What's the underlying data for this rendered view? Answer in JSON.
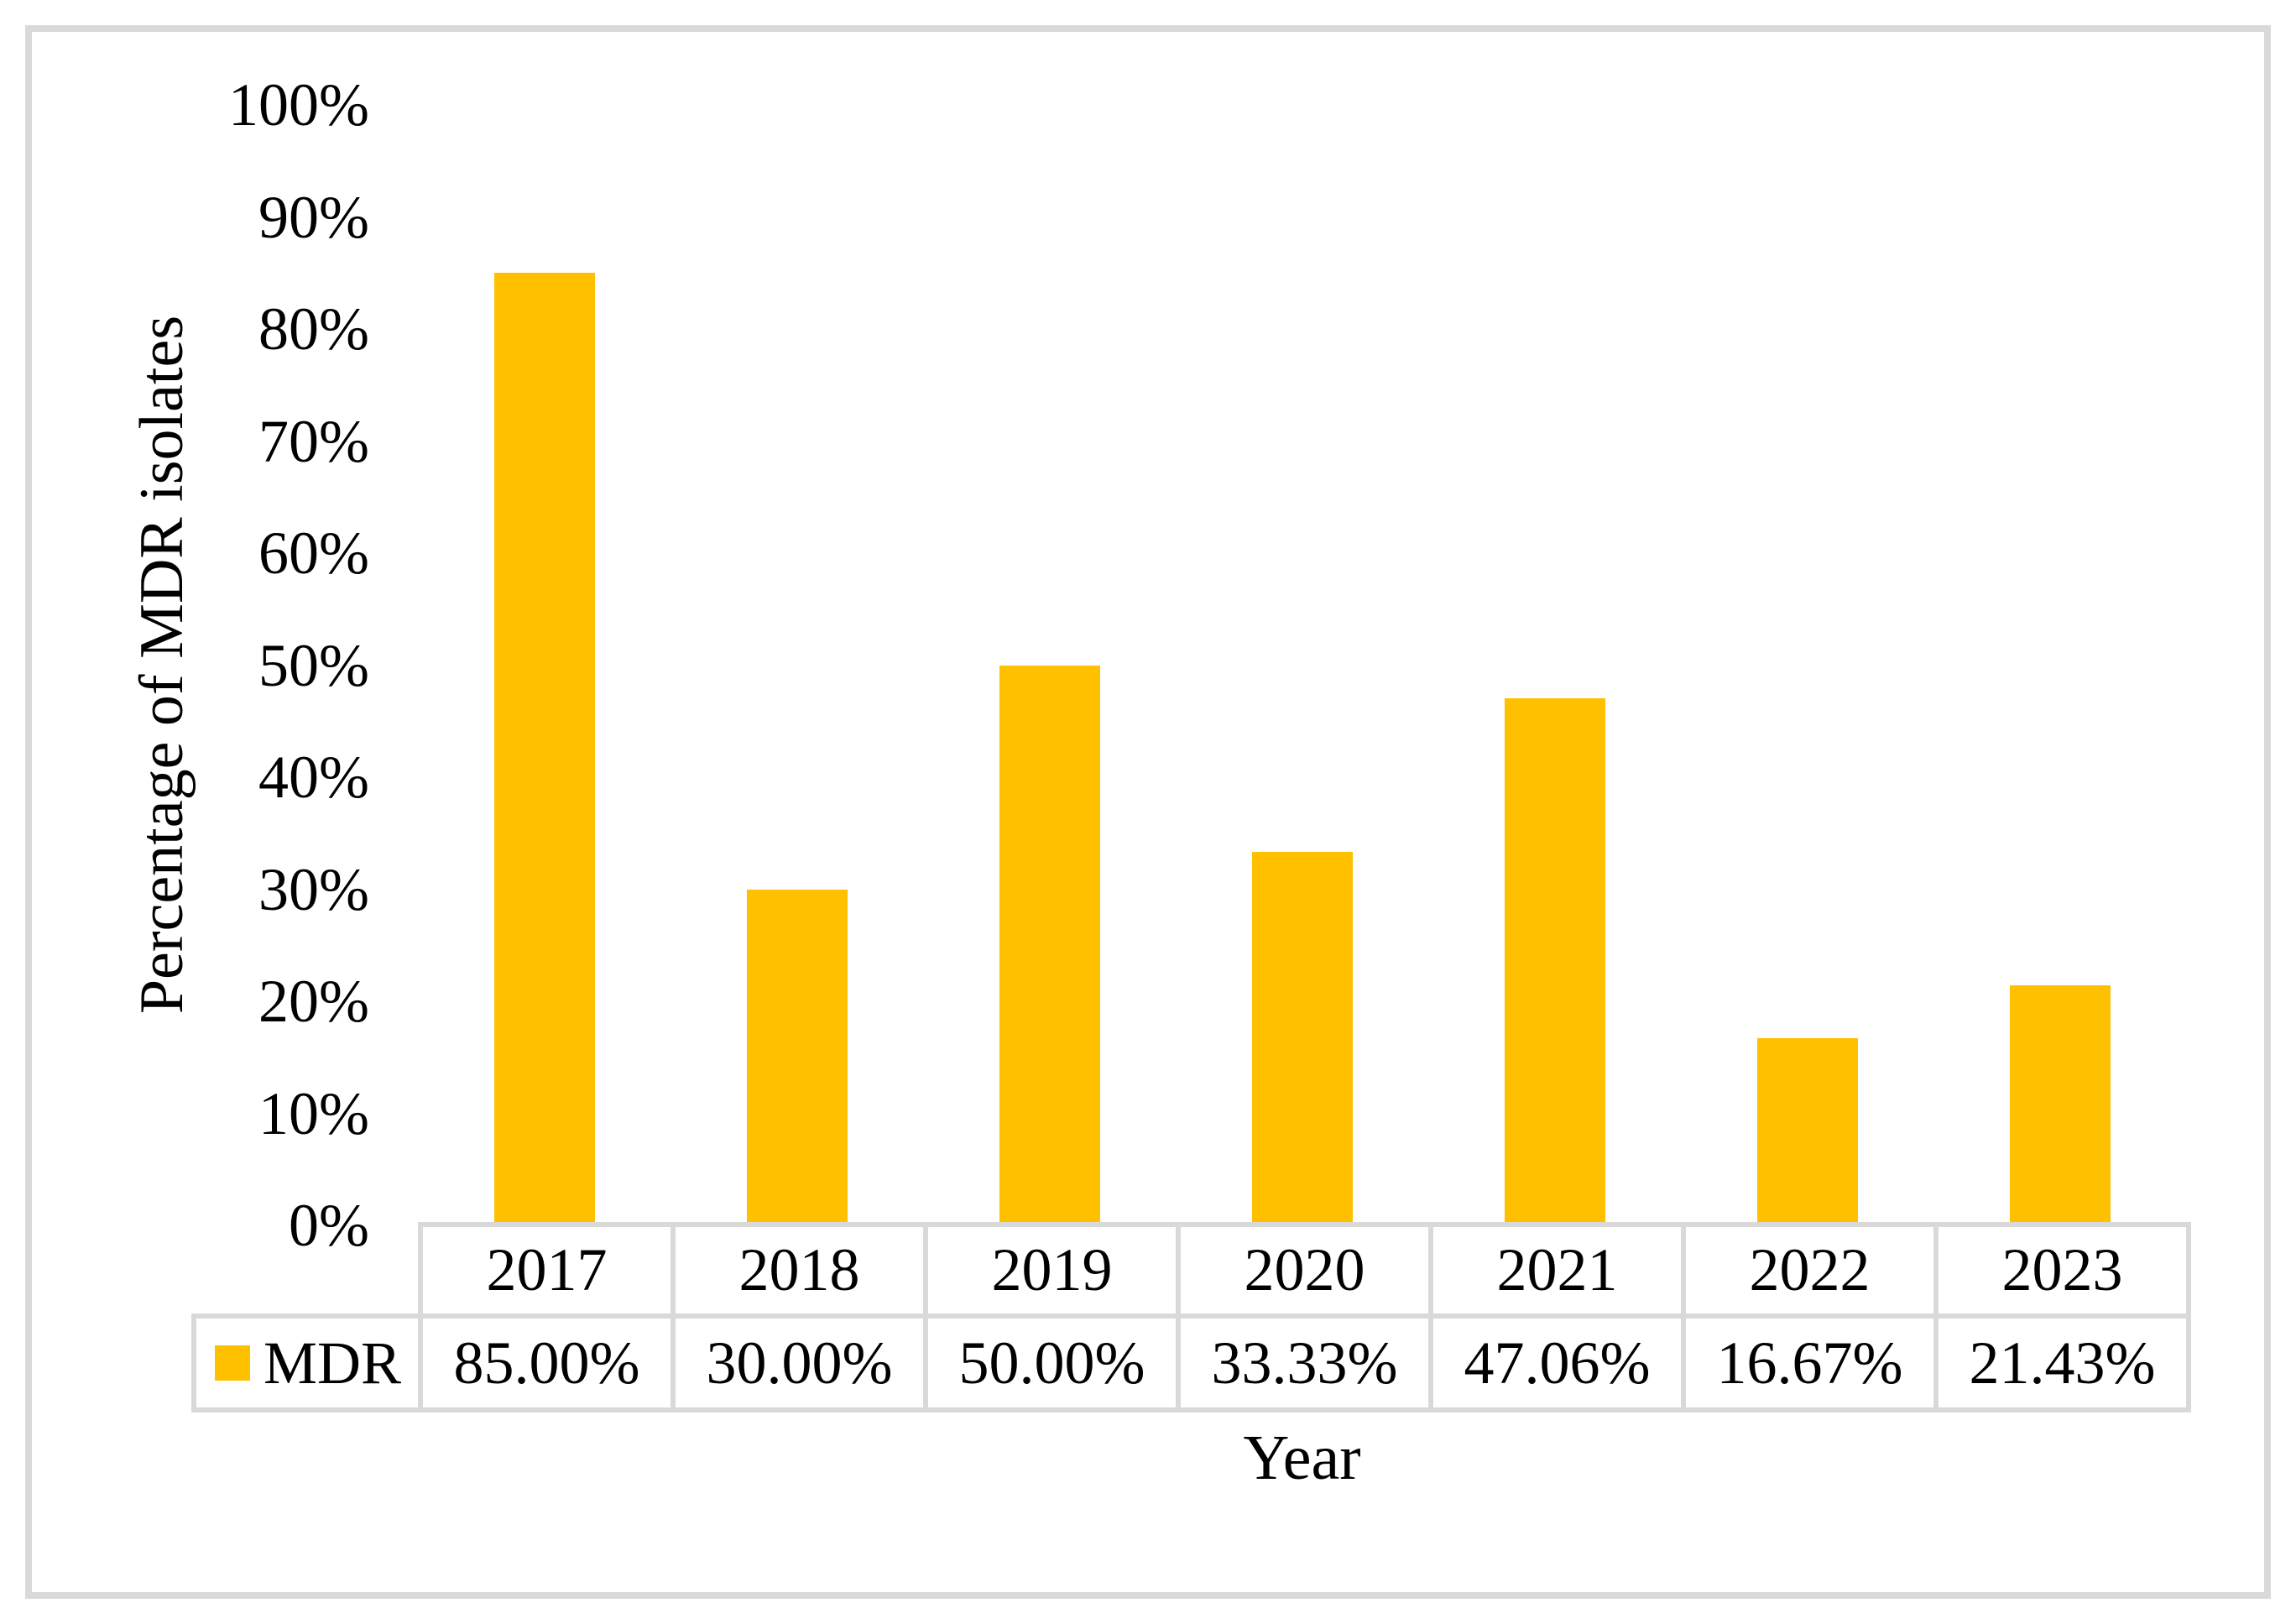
{
  "figure": {
    "frame_border_color": "#D9D9D9",
    "background_color": "#FFFFFF",
    "text_color": "#000000"
  },
  "chart_data": {
    "type": "bar",
    "title": "",
    "xlabel": "Year",
    "ylabel": "Percentage of MDR isolates",
    "categories": [
      "2017",
      "2018",
      "2019",
      "2020",
      "2021",
      "2022",
      "2023"
    ],
    "series": [
      {
        "name": "MDR",
        "values": [
          85.0,
          30.0,
          50.0,
          33.33,
          47.06,
          16.67,
          21.43
        ],
        "value_labels": [
          "85.00%",
          "30.00%",
          "50.00%",
          "33.33%",
          "47.06%",
          "16.67%",
          "21.43%"
        ],
        "color": "#FFC000"
      }
    ],
    "ylim": [
      0,
      100
    ],
    "ytick_step": 10,
    "ytick_labels": [
      "0%",
      "10%",
      "20%",
      "30%",
      "40%",
      "50%",
      "60%",
      "70%",
      "80%",
      "90%",
      "100%"
    ],
    "grid": false,
    "axis_lines": false,
    "legend_position": "data-table-left",
    "data_table_shown": true,
    "table_border_color": "#D9D9D9"
  }
}
